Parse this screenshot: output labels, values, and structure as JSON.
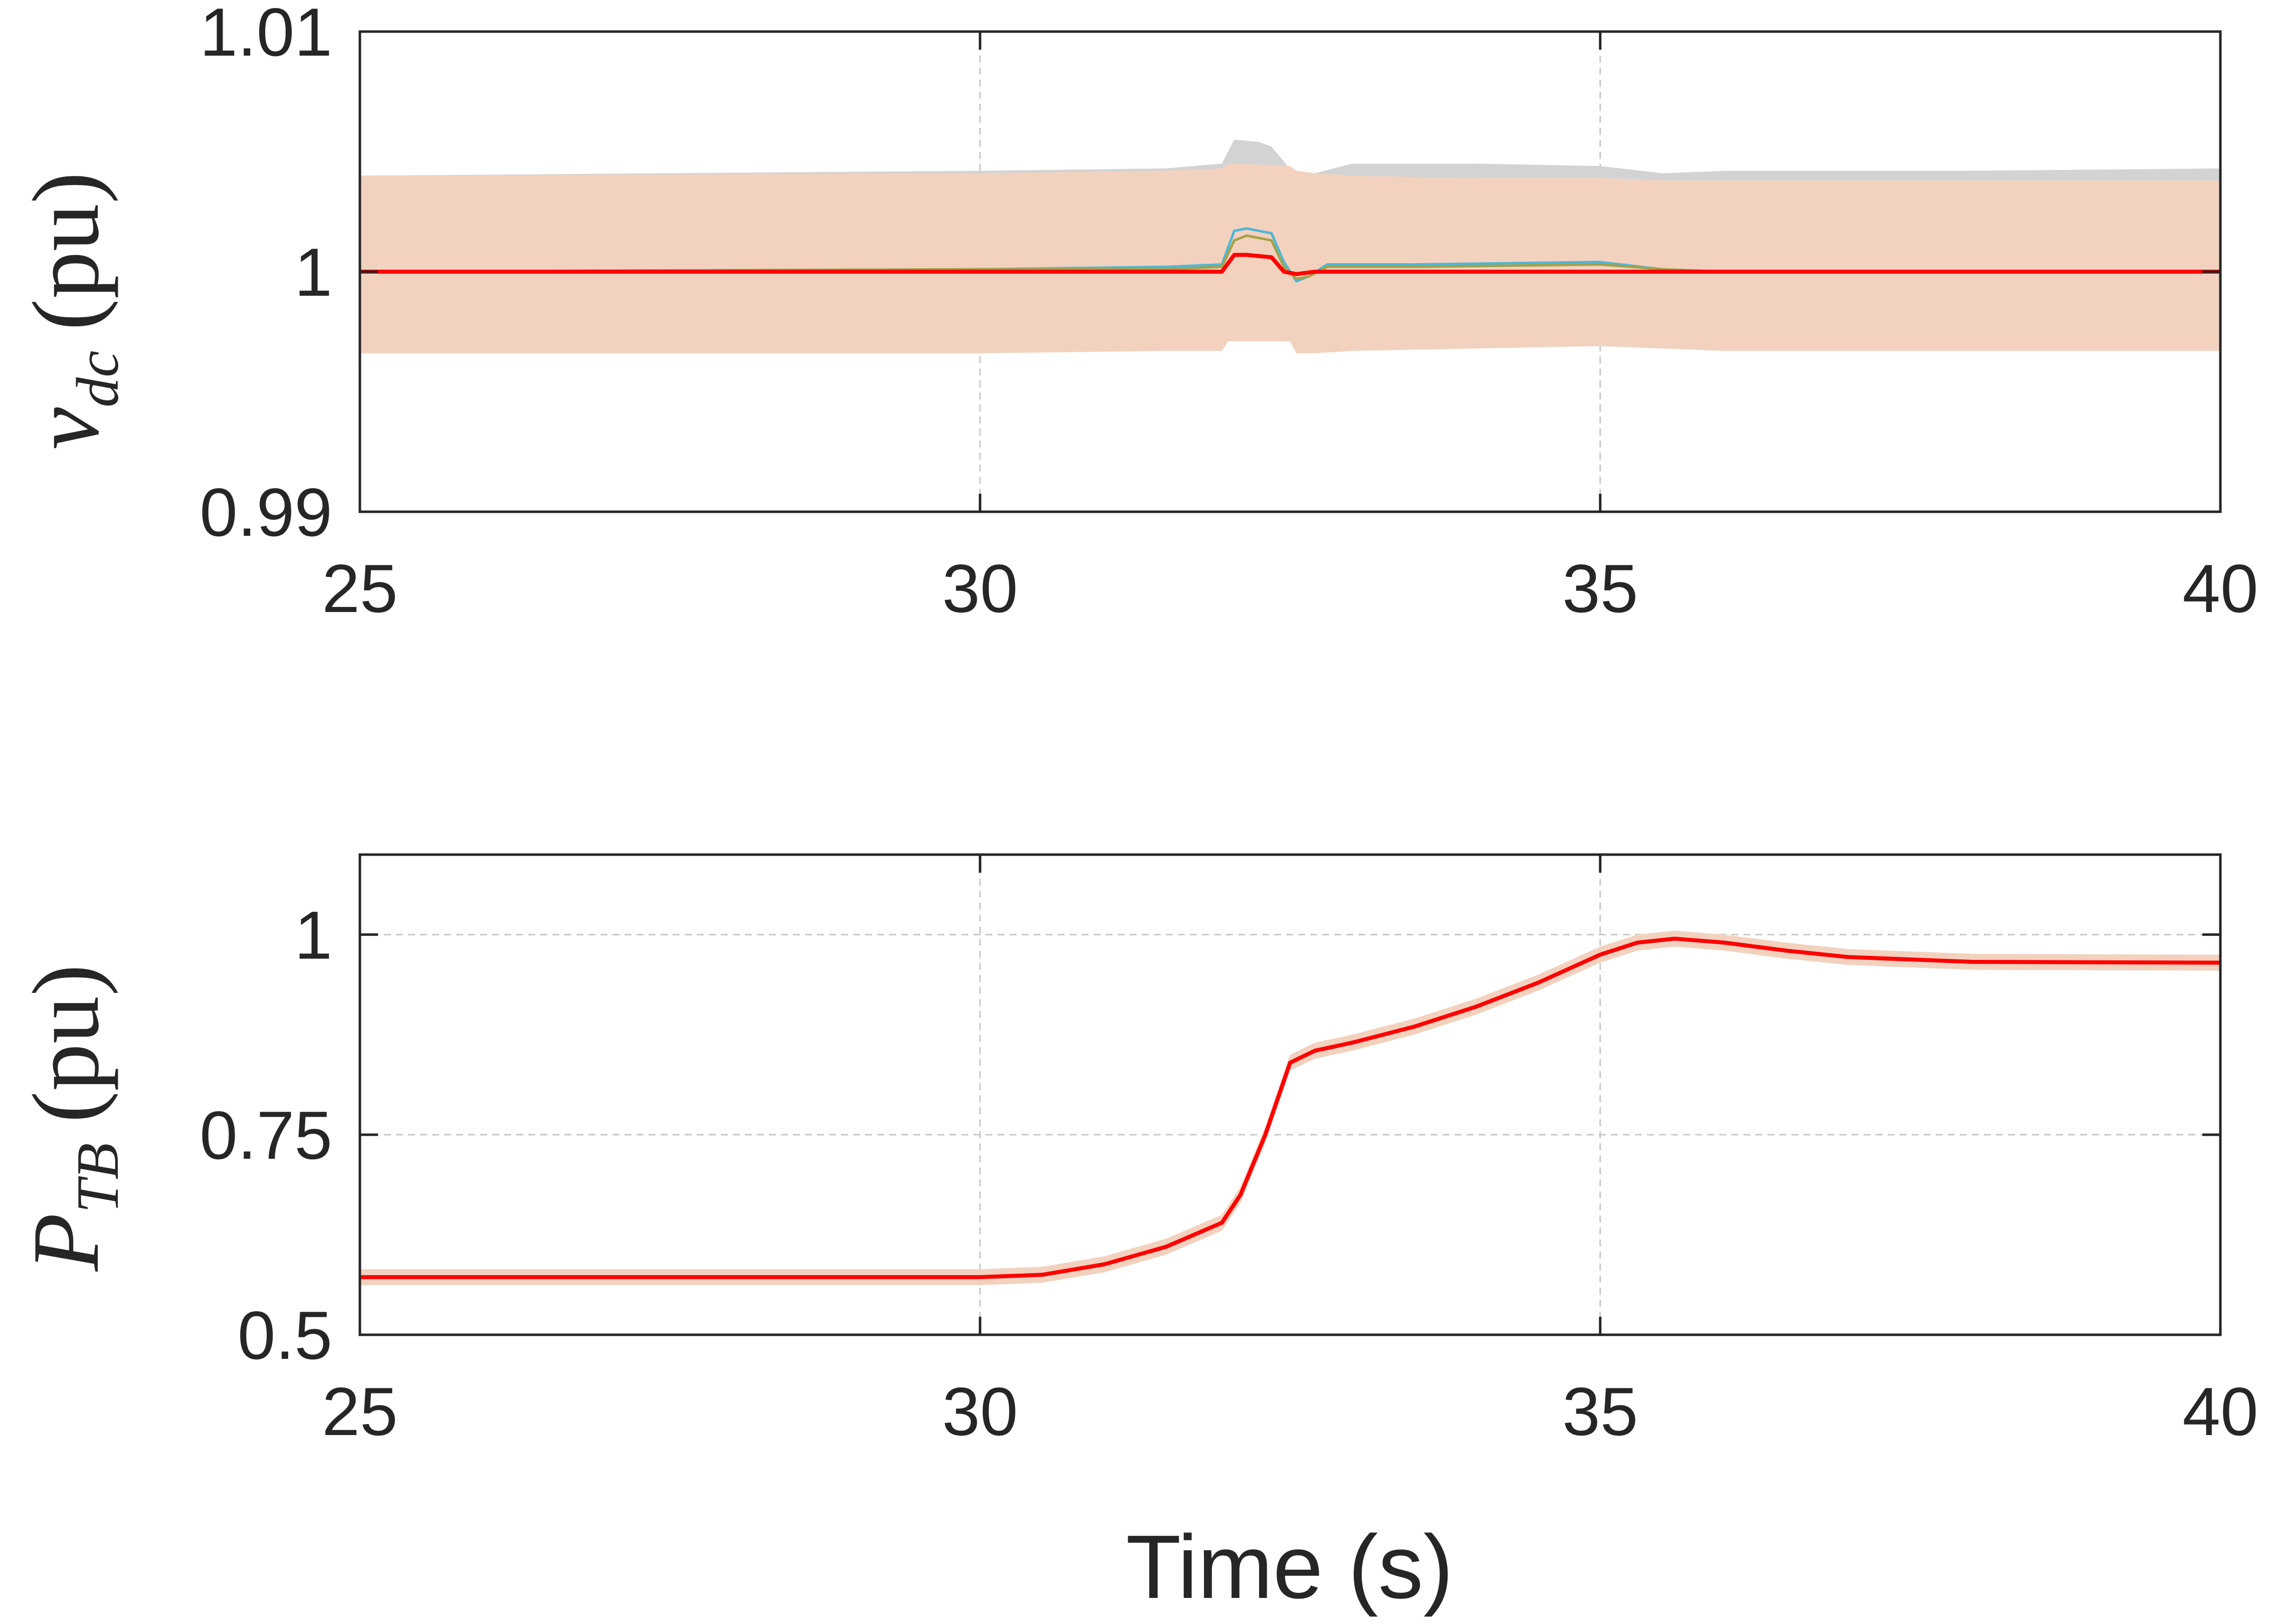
{
  "chart_data": [
    {
      "type": "line",
      "xlabel": "",
      "ylabel": {
        "symbol": "v",
        "subscript": "dc",
        "unit": "(pu)"
      },
      "xlim": [
        25,
        40
      ],
      "ylim": [
        0.99,
        1.01
      ],
      "xticks": [
        25,
        30,
        35,
        40
      ],
      "xtick_labels": [
        "25",
        "30",
        "35",
        "40"
      ],
      "yticks": [
        0.99,
        1.0,
        1.01
      ],
      "ytick_labels": [
        "0.99",
        "1",
        "1.01"
      ],
      "grid": true,
      "colors": {
        "band_upper": "#d3d3d3",
        "band_main": "#f2d2bf",
        "cyan": "#4fb6d6",
        "olive": "#a6a048",
        "mean": "#ff0000"
      },
      "bands": [
        {
          "x": [
            25,
            30,
            31.5,
            31.95,
            32.05,
            32.25,
            32.35,
            32.45,
            32.55,
            32.7,
            33,
            34,
            35,
            35.5,
            36,
            38,
            40
          ],
          "lower": [
            1.0036,
            1.0038,
            1.0039,
            1.004,
            1.0041,
            1.0041,
            1.0038,
            1.0036,
            1.0037,
            1.0039,
            1.0039,
            1.0039,
            1.0039,
            1.0038,
            1.0038,
            1.0038,
            1.0038
          ],
          "upper": [
            1.004,
            1.0042,
            1.0043,
            1.0045,
            1.0055,
            1.0054,
            1.0052,
            1.0046,
            1.0039,
            1.0041,
            1.0045,
            1.0045,
            1.0044,
            1.0041,
            1.0042,
            1.0042,
            1.0043
          ]
        },
        {
          "x": [
            25,
            30,
            31.5,
            31.95,
            32.0,
            32.1,
            32.5,
            32.55,
            32.7,
            33,
            34,
            35,
            35.5,
            36,
            38,
            40
          ],
          "lower": [
            0.9966,
            0.9966,
            0.9967,
            0.9967,
            0.9971,
            0.9971,
            0.9971,
            0.9966,
            0.9966,
            0.9967,
            0.9968,
            0.9969,
            0.9968,
            0.9967,
            0.9967,
            0.9967
          ],
          "upper": [
            1.004,
            1.0041,
            1.0042,
            1.0043,
            1.0045,
            1.0045,
            1.0044,
            1.0042,
            1.0041,
            1.004,
            1.0039,
            1.0039,
            1.0038,
            1.0038,
            1.0038,
            1.0038
          ]
        }
      ],
      "series": [
        {
          "x": [
            25,
            30,
            31.5,
            31.95,
            32.05,
            32.15,
            32.35,
            32.45,
            32.55,
            32.65,
            32.8,
            33.5,
            35,
            35.5,
            36,
            38,
            40
          ],
          "y": [
            1.0,
            1.0001,
            1.0002,
            1.0003,
            1.0017,
            1.0018,
            1.0016,
            1.0004,
            0.9996,
            0.9998,
            1.0003,
            1.0003,
            1.0004,
            1.0001,
            1.0,
            1.0,
            1.0
          ]
        },
        {
          "x": [
            25,
            30,
            31.5,
            31.95,
            32.05,
            32.15,
            32.35,
            32.45,
            32.55,
            32.65,
            32.8,
            33.5,
            35,
            35.5,
            36,
            38,
            40
          ],
          "y": [
            1.0,
            1.0001,
            1.0001,
            1.0002,
            1.0013,
            1.0015,
            1.0013,
            1.0002,
            0.9997,
            0.9998,
            1.0002,
            1.0002,
            1.0003,
            1.0001,
            1.0,
            1.0,
            1.0
          ]
        },
        {
          "x": [
            25,
            30,
            31.5,
            31.95,
            32.05,
            32.15,
            32.35,
            32.45,
            32.55,
            32.7,
            33,
            35,
            35.5,
            36,
            38,
            40
          ],
          "y": [
            1.0,
            1.0,
            1.0,
            1.0,
            1.0007,
            1.0007,
            1.0006,
            1.0,
            0.9999,
            1.0,
            1.0,
            1.0,
            1.0,
            1.0,
            1.0,
            1.0
          ]
        }
      ]
    },
    {
      "type": "line",
      "xlabel": "Time (s)",
      "ylabel": {
        "symbol": "P",
        "subscript": "TB",
        "unit": "(pu)"
      },
      "xlim": [
        25,
        40
      ],
      "ylim": [
        0.5,
        1.1
      ],
      "xticks": [
        25,
        30,
        35,
        40
      ],
      "xtick_labels": [
        "25",
        "30",
        "35",
        "40"
      ],
      "yticks": [
        0.5,
        0.75,
        1.0
      ],
      "ytick_labels": [
        "0.5",
        "0.75",
        "1"
      ],
      "grid": true,
      "colors": {
        "band": "#f2d2bf",
        "mean": "#ff0000"
      },
      "band_halfwidth": 0.01,
      "series": [
        {
          "x": [
            25,
            30,
            30.5,
            31,
            31.5,
            31.95,
            32.1,
            32.3,
            32.5,
            32.7,
            33,
            33.5,
            34,
            34.5,
            35,
            35.3,
            35.6,
            36,
            36.5,
            37,
            38,
            40
          ],
          "y": [
            0.572,
            0.572,
            0.575,
            0.588,
            0.61,
            0.64,
            0.675,
            0.75,
            0.84,
            0.855,
            0.865,
            0.885,
            0.91,
            0.94,
            0.975,
            0.99,
            0.995,
            0.99,
            0.98,
            0.972,
            0.966,
            0.965
          ]
        }
      ]
    }
  ]
}
